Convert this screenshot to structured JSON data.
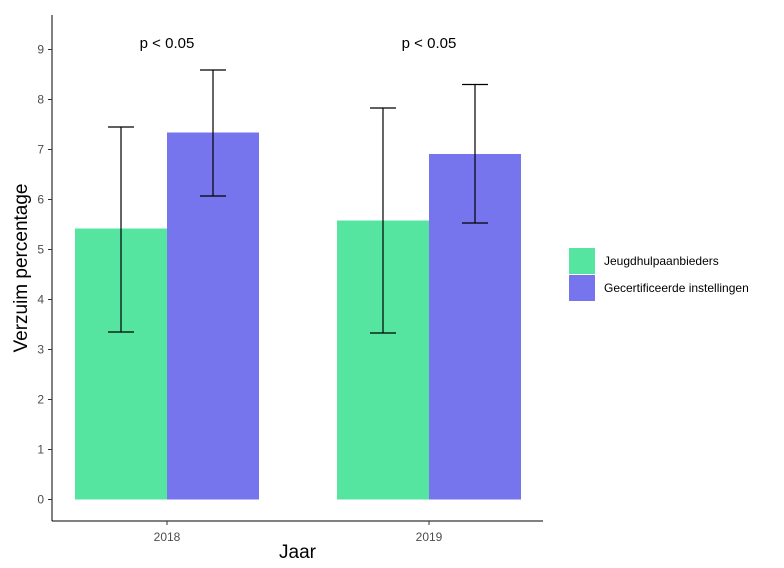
{
  "chart_data": {
    "type": "bar",
    "title": "",
    "xlabel": "Jaar",
    "ylabel": "Verzuim percentage",
    "categories": [
      "2018",
      "2019"
    ],
    "ylim": [
      0,
      9.5
    ],
    "yticks": [
      0,
      1,
      2,
      3,
      4,
      5,
      6,
      7,
      8,
      9
    ],
    "series": [
      {
        "name": "Jeugdhulpaanbieders",
        "color": "#56E5A1",
        "values": [
          5.42,
          5.58
        ],
        "error_low": [
          3.35,
          3.33
        ],
        "error_high": [
          7.45,
          7.83
        ]
      },
      {
        "name": "Gecertificeerde instellingen",
        "color": "#7775EE",
        "values": [
          7.34,
          6.91
        ],
        "error_low": [
          6.07,
          5.53
        ],
        "error_high": [
          8.59,
          8.3
        ]
      }
    ],
    "annotations": [
      "p < 0.05",
      "p < 0.05"
    ],
    "legend_position": "right",
    "grid": false
  }
}
